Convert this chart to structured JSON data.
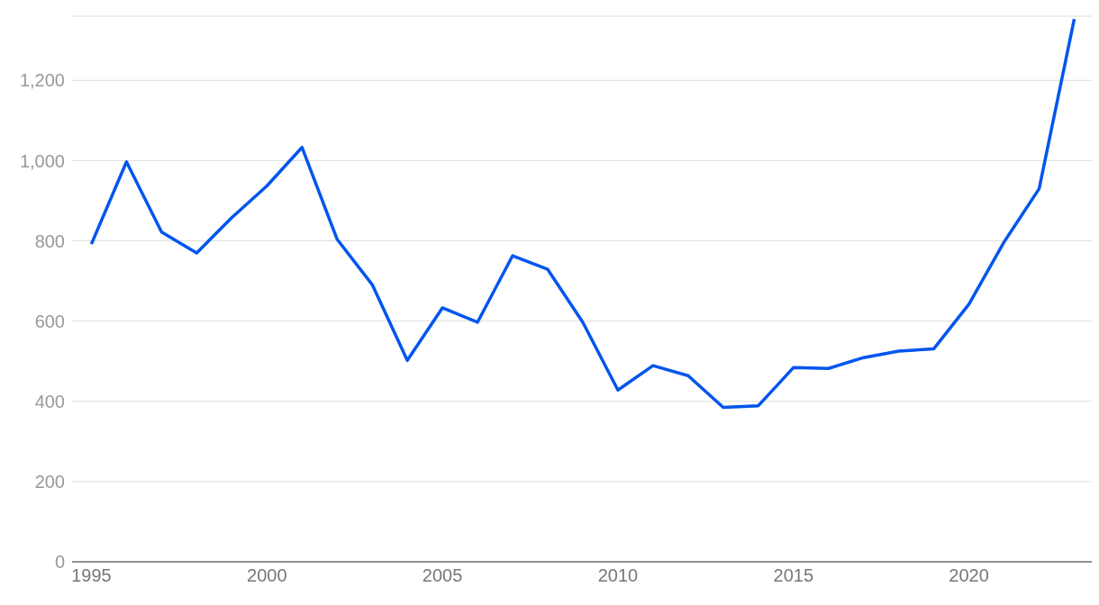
{
  "chart_data": {
    "type": "line",
    "x": [
      1995,
      1996,
      1997,
      1998,
      1999,
      2000,
      2001,
      2002,
      2003,
      2004,
      2005,
      2006,
      2007,
      2008,
      2009,
      2010,
      2011,
      2012,
      2013,
      2014,
      2015,
      2016,
      2017,
      2018,
      2019,
      2020,
      2021,
      2022,
      2023
    ],
    "series": [
      {
        "color": "#0055ee",
        "values": [
          792,
          997,
          822,
          770,
          858,
          937,
          1033,
          804,
          691,
          502,
          633,
          597,
          763,
          729,
          597,
          428,
          489,
          464,
          385,
          389,
          484,
          482,
          509,
          525,
          531,
          642,
          797,
          930,
          1353
        ]
      }
    ],
    "xlim": [
      1994.45,
      2023.5
    ],
    "xticks": [
      1995,
      2000,
      2005,
      2010,
      2015,
      2020
    ],
    "ylim": [
      0,
      1360
    ],
    "yticks": [
      0,
      200,
      400,
      600,
      800,
      {
        "value": 1000,
        "label": "1,000"
      },
      {
        "value": 1200,
        "label": "1,200"
      }
    ],
    "grid": "y",
    "legend": false,
    "marker": "none",
    "line_style": "solid"
  }
}
